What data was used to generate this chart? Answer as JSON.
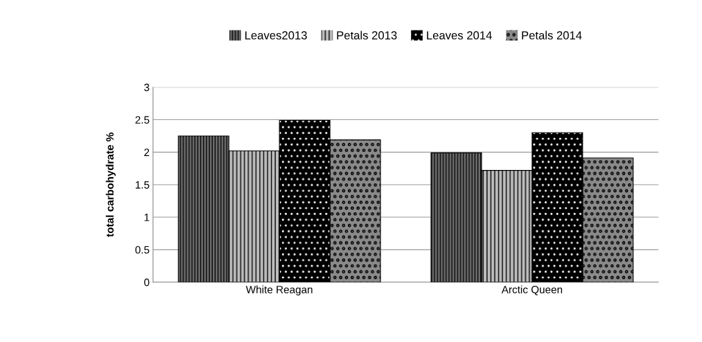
{
  "chart_data": {
    "type": "bar",
    "ylabel": "total carbohydrate %",
    "categories": [
      "White Reagan",
      "Arctic Queen"
    ],
    "series": [
      {
        "name": "Leaves2013",
        "color": "#6e6e6e",
        "values": [
          2.25,
          1.99
        ]
      },
      {
        "name": "Petals 2013",
        "color": "#bdbdbd",
        "values": [
          2.02,
          1.72
        ]
      },
      {
        "name": "Leaves 2014",
        "color": "#000000",
        "values": [
          2.49,
          2.3
        ]
      },
      {
        "name": "Petals 2014",
        "color": "#8a8a8a",
        "values": [
          2.19,
          1.91
        ]
      }
    ],
    "ylim": [
      0,
      3
    ],
    "yticks": [
      0,
      0.5,
      1,
      1.5,
      2,
      2.5,
      3
    ],
    "grid": "y",
    "legend": "top"
  }
}
